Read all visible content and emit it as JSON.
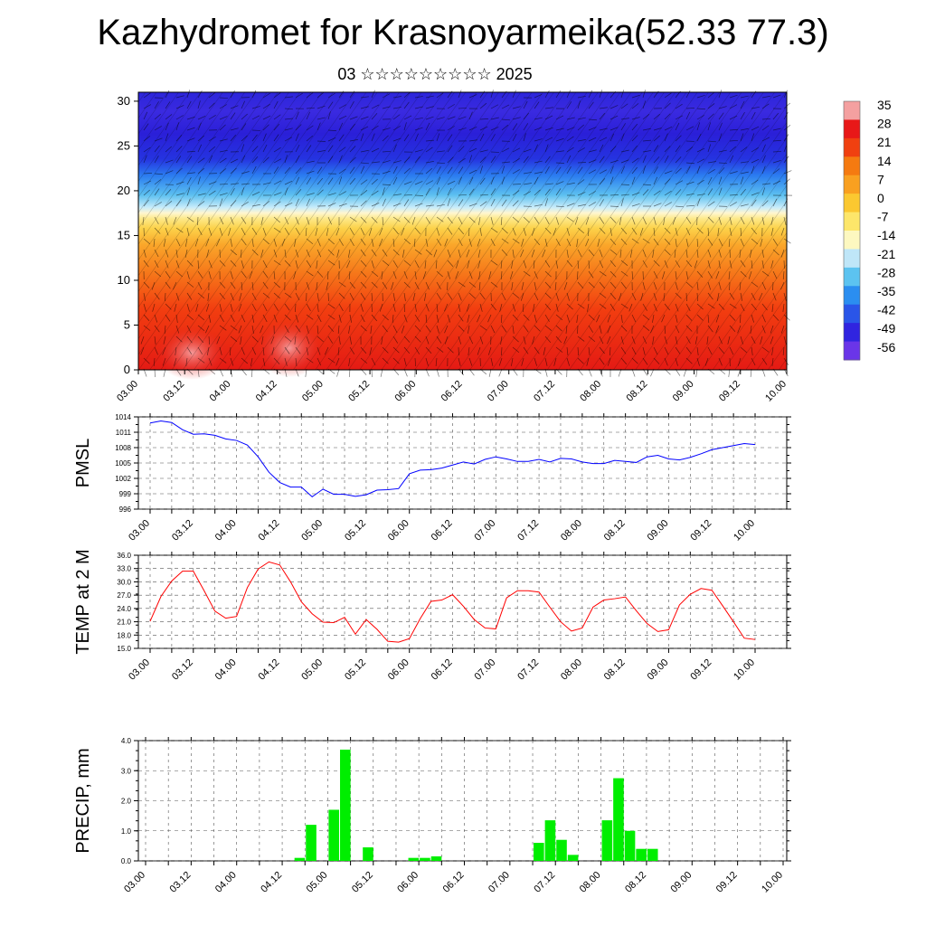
{
  "title": "Kazhydromet for Krasnoyarmeika(52.33 77.3)",
  "subtitle": "03 ☆☆☆☆☆☆☆☆☆ 2025",
  "x_tick_labels": [
    "03.00",
    "03.12",
    "04.00",
    "04.12",
    "05.00",
    "05.12",
    "06.00",
    "06.12",
    "07.00",
    "07.12",
    "08.00",
    "08.12",
    "09.00",
    "09.12",
    "10.00"
  ],
  "colors": {
    "pmsl_line": "#0000ff",
    "temp_line": "#ff0000",
    "precip_bar": "#00ee00",
    "grid": "#555555"
  },
  "chart_data": [
    {
      "type": "heatmap",
      "title": "",
      "xlabel": "",
      "ylabel": "",
      "ylim": [
        0,
        30
      ],
      "y_ticks": [
        0,
        5,
        10,
        15,
        20,
        25,
        30
      ],
      "x_ticks": [
        "03.00",
        "03.12",
        "04.00",
        "04.12",
        "05.00",
        "05.12",
        "06.00",
        "06.12",
        "07.00",
        "07.12",
        "08.00",
        "08.12",
        "09.00",
        "09.12",
        "10.00"
      ],
      "colorbar": {
        "labels": [
          "35",
          "28",
          "21",
          "14",
          "7",
          "0",
          "-7",
          "-14",
          "-21",
          "-28",
          "-35",
          "-42",
          "-49",
          "-56"
        ],
        "colors": [
          "#f4a0a0",
          "#e81818",
          "#f04010",
          "#f57a10",
          "#f9a020",
          "#fbc830",
          "#fde66a",
          "#fdf8c0",
          "#bfe6f8",
          "#5cc3f0",
          "#2b8ef0",
          "#2a55e8",
          "#3024e0",
          "#6a35e8"
        ]
      }
    },
    {
      "type": "line",
      "title": "",
      "xlabel": "",
      "ylabel": "PMSL",
      "ylim": [
        996,
        1014
      ],
      "y_ticks": [
        "996",
        "999",
        "1002",
        "1005",
        "1008",
        "1011",
        "1014"
      ],
      "series": [
        {
          "name": "",
          "x": [
            0,
            3,
            6,
            9,
            12,
            15,
            18,
            21,
            24,
            27,
            30,
            33,
            36,
            39,
            42,
            45,
            48,
            51,
            54,
            57,
            60,
            63,
            66,
            69,
            72,
            75,
            78,
            81,
            84,
            87,
            90,
            93,
            96,
            99,
            102,
            105,
            108,
            111,
            114,
            117,
            120,
            123,
            126,
            129,
            132,
            135,
            138,
            141,
            144,
            147,
            150,
            153,
            156,
            159,
            162,
            165,
            168
          ],
          "values": [
            1012.8,
            1013.2,
            1012.9,
            1011.5,
            1010.6,
            1010.7,
            1010.4,
            1009.7,
            1009.4,
            1008.5,
            1006.2,
            1003.2,
            1001.2,
            1000.3,
            1000.3,
            998.4,
            999.9,
            998.9,
            998.9,
            998.5,
            998.8,
            999.7,
            999.8,
            1000.0,
            1002.9,
            1003.6,
            1003.7,
            1004.0,
            1004.6,
            1005.2,
            1004.8,
            1005.7,
            1006.2,
            1005.8,
            1005.3,
            1005.3,
            1005.7,
            1005.2,
            1005.9,
            1005.8,
            1005.2,
            1004.9,
            1004.9,
            1005.5,
            1005.3,
            1005.1,
            1006.2,
            1006.5,
            1005.8,
            1005.6,
            1006.1,
            1006.8,
            1007.6,
            1008.0,
            1008.4,
            1008.8,
            1008.6
          ]
        }
      ]
    },
    {
      "type": "line",
      "title": "",
      "xlabel": "",
      "ylabel": "TEMP at 2 M",
      "ylim": [
        15.0,
        36.0
      ],
      "y_ticks": [
        "15.0",
        "18.0",
        "21.0",
        "24.0",
        "27.0",
        "30.0",
        "33.0",
        "36.0"
      ],
      "series": [
        {
          "name": "",
          "x": [
            0,
            3,
            6,
            9,
            12,
            15,
            18,
            21,
            24,
            27,
            30,
            33,
            36,
            39,
            42,
            45,
            48,
            51,
            54,
            57,
            60,
            63,
            66,
            69,
            72,
            75,
            78,
            81,
            84,
            87,
            90,
            93,
            96,
            99,
            102,
            105,
            108,
            111,
            114,
            117,
            120,
            123,
            126,
            129,
            132,
            135,
            138,
            141,
            144,
            147,
            150,
            153,
            156,
            159,
            162,
            165,
            168
          ],
          "values": [
            21.1,
            26.7,
            30.2,
            32.4,
            32.4,
            28.0,
            23.4,
            21.8,
            22.2,
            28.7,
            32.9,
            34.5,
            33.8,
            30.0,
            25.5,
            22.8,
            20.9,
            20.8,
            22.0,
            18.2,
            21.5,
            19.3,
            16.6,
            16.4,
            17.2,
            21.7,
            25.6,
            25.9,
            27.1,
            24.5,
            21.5,
            19.6,
            19.4,
            26.4,
            28.0,
            28.0,
            27.7,
            24.3,
            21.0,
            18.9,
            19.6,
            24.3,
            25.9,
            26.2,
            26.6,
            23.5,
            20.6,
            18.8,
            19.2,
            24.8,
            27.2,
            28.5,
            28.1,
            24.6,
            21.0,
            17.3,
            17.0
          ]
        }
      ]
    },
    {
      "type": "bar",
      "title": "",
      "xlabel": "",
      "ylabel": "PRECIP, mm",
      "ylim": [
        0.0,
        4.0
      ],
      "y_ticks": [
        "0.0",
        "1.0",
        "2.0",
        "3.0",
        "4.0"
      ],
      "bar_width_hours": 3,
      "series": [
        {
          "name": "",
          "x": [
            39,
            42,
            45,
            48,
            51,
            54,
            57,
            60,
            63,
            66,
            69,
            72,
            75,
            78,
            81,
            84,
            87,
            90,
            93,
            96,
            99,
            102,
            105,
            108,
            111,
            114,
            117,
            120,
            123,
            126,
            129,
            132,
            135,
            138
          ],
          "values": [
            0.1,
            1.2,
            0,
            1.7,
            3.7,
            0,
            0.45,
            0,
            0,
            0,
            0.1,
            0.1,
            0.15,
            0,
            0,
            0,
            0,
            0,
            0,
            0,
            0,
            0.6,
            1.35,
            0.7,
            0.2,
            0,
            0,
            1.35,
            2.75,
            1.0,
            0.4,
            0.4,
            0,
            0
          ]
        }
      ]
    }
  ]
}
